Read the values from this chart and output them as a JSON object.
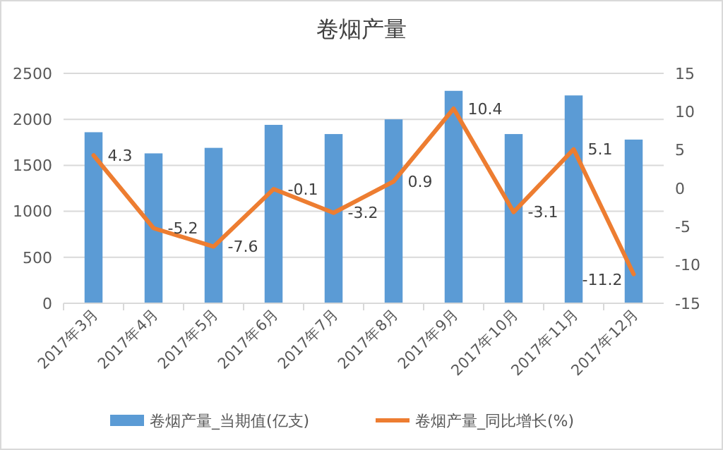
{
  "chart_data": {
    "type": "bar",
    "title": "卷烟产量",
    "categories": [
      "2017年3月",
      "2017年4月",
      "2017年5月",
      "2017年6月",
      "2017年7月",
      "2017年8月",
      "2017年9月",
      "2017年10月",
      "2017年11月",
      "2017年12月"
    ],
    "series": [
      {
        "name": "卷烟产量_当期值(亿支)",
        "color": "#5b9bd5",
        "values": [
          1860,
          1630,
          1690,
          1940,
          1840,
          2000,
          2310,
          1840,
          2260,
          1780
        ]
      },
      {
        "name": "卷烟产量_同比增长(%)",
        "type": "line",
        "axis": "y2",
        "color": "#ed7d31",
        "values": [
          4.3,
          -5.2,
          -7.6,
          -0.1,
          -3.2,
          0.9,
          10.4,
          -3.1,
          5.1,
          -11.2
        ],
        "data_labels": true
      }
    ],
    "ylim": [
      0,
      2500
    ],
    "yticks": [
      0,
      500,
      1000,
      1500,
      2000,
      2500
    ],
    "y2lim": [
      -15,
      15
    ],
    "y2ticks": [
      -15,
      -10,
      -5,
      0,
      5,
      10,
      15
    ],
    "grid": "y",
    "legend": "bottom",
    "marker": "none",
    "line_style": "solid"
  }
}
